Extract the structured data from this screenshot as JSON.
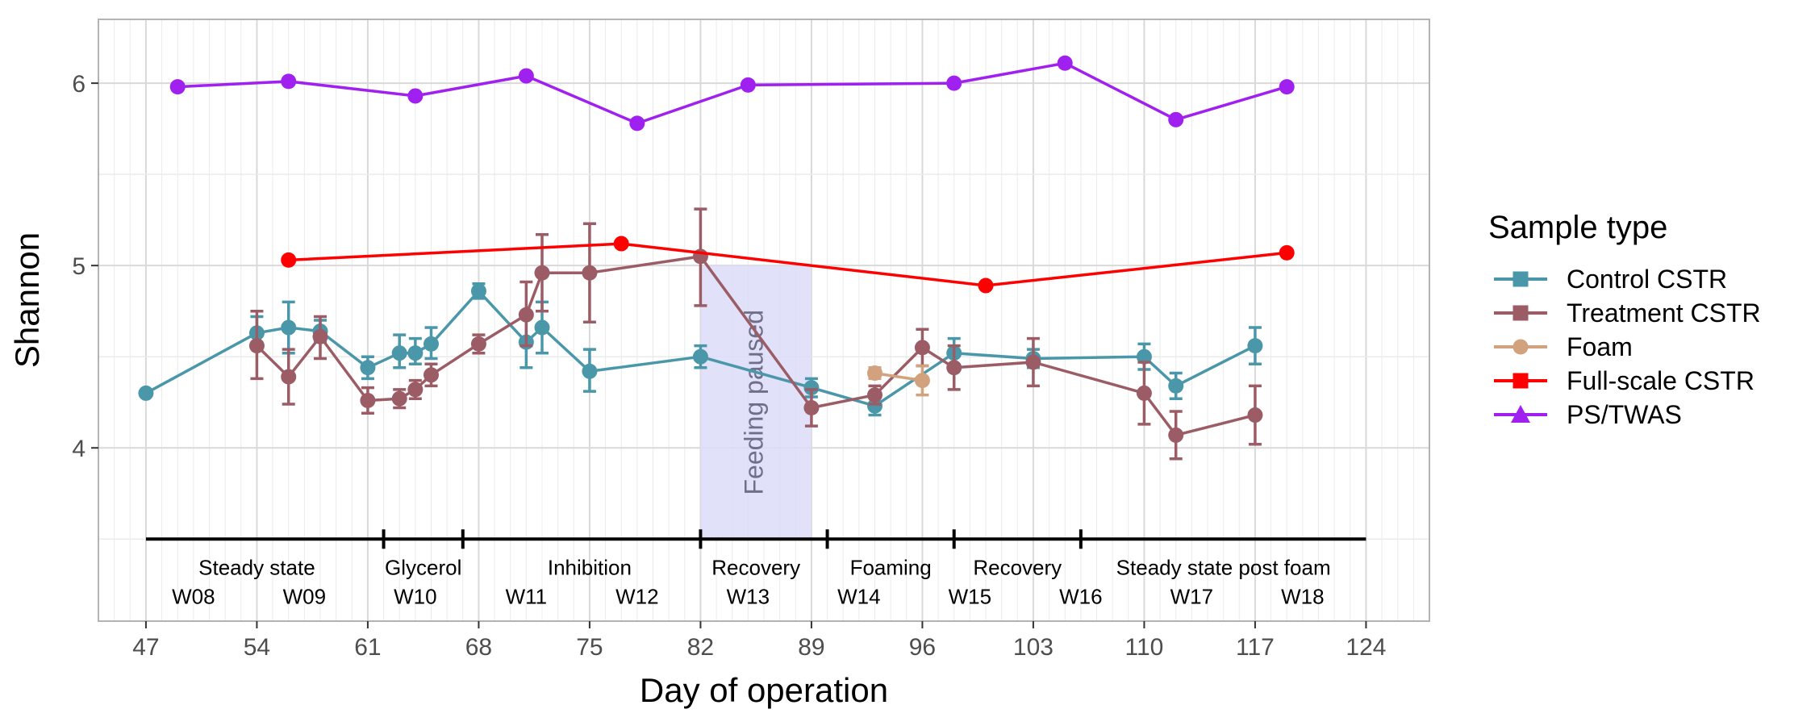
{
  "chart_data": {
    "type": "line",
    "xlabel": "Day of operation",
    "ylabel": "Shannon",
    "xlim": [
      44,
      128
    ],
    "ylim": [
      3.05,
      6.35
    ],
    "x_ticks": [
      47,
      54,
      61,
      68,
      75,
      82,
      89,
      96,
      103,
      110,
      117,
      124
    ],
    "y_ticks": [
      4,
      5,
      6
    ],
    "legend_title": "Sample type",
    "legend_position": "right",
    "grid": true,
    "shaded_region": {
      "x": [
        82,
        89
      ],
      "y": [
        3.5,
        5.0
      ],
      "label": "Feeding paused",
      "color": "#dcdcf8"
    },
    "timeline": {
      "y": 3.5,
      "boundaries": [
        47,
        62,
        67,
        82,
        90,
        98,
        106,
        124
      ],
      "periods": [
        {
          "label": "Steady state",
          "x": 54
        },
        {
          "label": "Glycerol",
          "x": 64.5
        },
        {
          "label": "Inhibition",
          "x": 75
        },
        {
          "label": "Recovery",
          "x": 85.5
        },
        {
          "label": "Foaming",
          "x": 94
        },
        {
          "label": "Recovery",
          "x": 102
        },
        {
          "label": "Steady state post foam",
          "x": 115
        }
      ],
      "weeks": [
        {
          "label": "W08",
          "x": 50
        },
        {
          "label": "W09",
          "x": 57
        },
        {
          "label": "W10",
          "x": 64
        },
        {
          "label": "W11",
          "x": 71
        },
        {
          "label": "W12",
          "x": 78
        },
        {
          "label": "W13",
          "x": 85
        },
        {
          "label": "W14",
          "x": 92
        },
        {
          "label": "W15",
          "x": 99
        },
        {
          "label": "W16",
          "x": 106
        },
        {
          "label": "W17",
          "x": 113
        },
        {
          "label": "W18",
          "x": 120
        }
      ]
    },
    "series": [
      {
        "name": "Control CSTR",
        "color": "#4a97aa",
        "marker": "square",
        "points": [
          {
            "x": 47,
            "y": 4.3
          },
          {
            "x": 54,
            "y": 4.63,
            "ymin": 4.55,
            "ymax": 4.72
          },
          {
            "x": 56,
            "y": 4.66,
            "ymin": 4.52,
            "ymax": 4.8
          },
          {
            "x": 58,
            "y": 4.64,
            "ymin": 4.58,
            "ymax": 4.7
          },
          {
            "x": 61,
            "y": 4.44,
            "ymin": 4.38,
            "ymax": 4.5
          },
          {
            "x": 63,
            "y": 4.52,
            "ymin": 4.44,
            "ymax": 4.62
          },
          {
            "x": 64,
            "y": 4.52,
            "ymin": 4.46,
            "ymax": 4.6
          },
          {
            "x": 65,
            "y": 4.57,
            "ymin": 4.49,
            "ymax": 4.66
          },
          {
            "x": 68,
            "y": 4.86,
            "ymin": 4.82,
            "ymax": 4.9
          },
          {
            "x": 71,
            "y": 4.58,
            "ymin": 4.44,
            "ymax": 4.72
          },
          {
            "x": 72,
            "y": 4.66,
            "ymin": 4.52,
            "ymax": 4.8
          },
          {
            "x": 75,
            "y": 4.42,
            "ymin": 4.31,
            "ymax": 4.54
          },
          {
            "x": 82,
            "y": 4.5,
            "ymin": 4.44,
            "ymax": 4.56
          },
          {
            "x": 89,
            "y": 4.33,
            "ymin": 4.28,
            "ymax": 4.38
          },
          {
            "x": 93,
            "y": 4.23,
            "ymin": 4.18,
            "ymax": 4.28
          },
          {
            "x": 98,
            "y": 4.52,
            "ymin": 4.44,
            "ymax": 4.6
          },
          {
            "x": 103,
            "y": 4.49,
            "ymin": 4.44,
            "ymax": 4.54
          },
          {
            "x": 110,
            "y": 4.5,
            "ymin": 4.43,
            "ymax": 4.57
          },
          {
            "x": 112,
            "y": 4.34,
            "ymin": 4.27,
            "ymax": 4.41
          },
          {
            "x": 117,
            "y": 4.56,
            "ymin": 4.46,
            "ymax": 4.66
          }
        ]
      },
      {
        "name": "Treatment CSTR",
        "color": "#9b5c66",
        "marker": "square",
        "points": [
          {
            "x": 54,
            "y": 4.56,
            "ymin": 4.38,
            "ymax": 4.75
          },
          {
            "x": 56,
            "y": 4.39,
            "ymin": 4.24,
            "ymax": 4.54
          },
          {
            "x": 58,
            "y": 4.61,
            "ymin": 4.49,
            "ymax": 4.72
          },
          {
            "x": 61,
            "y": 4.26,
            "ymin": 4.19,
            "ymax": 4.33
          },
          {
            "x": 63,
            "y": 4.27,
            "ymin": 4.22,
            "ymax": 4.32
          },
          {
            "x": 64,
            "y": 4.32,
            "ymin": 4.27,
            "ymax": 4.37
          },
          {
            "x": 65,
            "y": 4.4,
            "ymin": 4.34,
            "ymax": 4.46
          },
          {
            "x": 68,
            "y": 4.57,
            "ymin": 4.52,
            "ymax": 4.62
          },
          {
            "x": 71,
            "y": 4.73,
            "ymin": 4.56,
            "ymax": 4.91
          },
          {
            "x": 72,
            "y": 4.96,
            "ymin": 4.75,
            "ymax": 5.17
          },
          {
            "x": 75,
            "y": 4.96,
            "ymin": 4.69,
            "ymax": 5.23
          },
          {
            "x": 82,
            "y": 5.05,
            "ymin": 4.78,
            "ymax": 5.31
          },
          {
            "x": 89,
            "y": 4.22,
            "ymin": 4.12,
            "ymax": 4.32
          },
          {
            "x": 93,
            "y": 4.29,
            "ymin": 4.24,
            "ymax": 4.34
          },
          {
            "x": 96,
            "y": 4.55,
            "ymin": 4.45,
            "ymax": 4.65
          },
          {
            "x": 98,
            "y": 4.44,
            "ymin": 4.32,
            "ymax": 4.56
          },
          {
            "x": 103,
            "y": 4.47,
            "ymin": 4.34,
            "ymax": 4.6
          },
          {
            "x": 110,
            "y": 4.3,
            "ymin": 4.13,
            "ymax": 4.47
          },
          {
            "x": 112,
            "y": 4.07,
            "ymin": 3.94,
            "ymax": 4.2
          },
          {
            "x": 117,
            "y": 4.18,
            "ymin": 4.02,
            "ymax": 4.34
          }
        ]
      },
      {
        "name": "Foam",
        "color": "#d1a27d",
        "marker": "circle",
        "points": [
          {
            "x": 93,
            "y": 4.41,
            "ymin": 4.38,
            "ymax": 4.44
          },
          {
            "x": 96,
            "y": 4.37,
            "ymin": 4.29,
            "ymax": 4.45
          }
        ]
      },
      {
        "name": "Full-scale CSTR",
        "color": "#ff0000",
        "marker": "square",
        "points": [
          {
            "x": 56,
            "y": 5.03
          },
          {
            "x": 77,
            "y": 5.12
          },
          {
            "x": 100,
            "y": 4.89
          },
          {
            "x": 119,
            "y": 5.07
          }
        ]
      },
      {
        "name": "PS/TWAS",
        "color": "#a020f0",
        "marker": "triangle",
        "points": [
          {
            "x": 49,
            "y": 5.98
          },
          {
            "x": 56,
            "y": 6.01
          },
          {
            "x": 64,
            "y": 5.93
          },
          {
            "x": 71,
            "y": 6.04
          },
          {
            "x": 78,
            "y": 5.78
          },
          {
            "x": 85,
            "y": 5.99
          },
          {
            "x": 98,
            "y": 6.0
          },
          {
            "x": 105,
            "y": 6.11
          },
          {
            "x": 112,
            "y": 5.8
          },
          {
            "x": 119,
            "y": 5.98
          }
        ]
      }
    ]
  }
}
